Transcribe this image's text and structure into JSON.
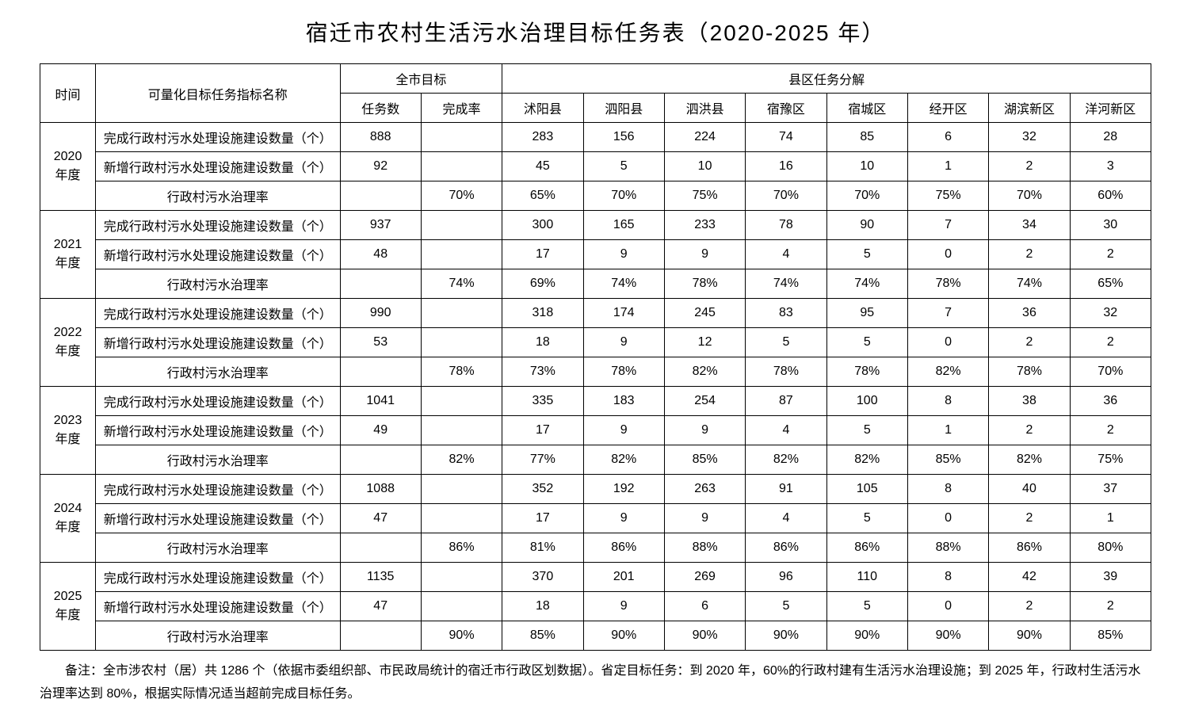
{
  "title": "宿迁市农村生活污水治理目标任务表（2020-2025 年）",
  "headers": {
    "time": "时间",
    "indicator": "可量化目标任务指标名称",
    "cityTarget": "全市目标",
    "taskCount": "任务数",
    "completionRate": "完成率",
    "countyBreakdown": "县区任务分解",
    "counties": [
      "沭阳县",
      "泗阳县",
      "泗洪县",
      "宿豫区",
      "宿城区",
      "经开区",
      "湖滨新区",
      "洋河新区"
    ]
  },
  "indicators": {
    "completed": "完成行政村污水处理设施建设数量（个）",
    "new": "新增行政村污水处理设施建设数量（个）",
    "rate": "行政村污水治理率"
  },
  "years": [
    {
      "label": "2020年度",
      "rows": [
        {
          "indicator": "completed",
          "taskCount": "888",
          "completionRate": "",
          "values": [
            "283",
            "156",
            "224",
            "74",
            "85",
            "6",
            "32",
            "28"
          ]
        },
        {
          "indicator": "new",
          "taskCount": "92",
          "completionRate": "",
          "values": [
            "45",
            "5",
            "10",
            "16",
            "10",
            "1",
            "2",
            "3"
          ]
        },
        {
          "indicator": "rate",
          "taskCount": "",
          "completionRate": "70%",
          "values": [
            "65%",
            "70%",
            "75%",
            "70%",
            "70%",
            "75%",
            "70%",
            "60%"
          ]
        }
      ]
    },
    {
      "label": "2021年度",
      "rows": [
        {
          "indicator": "completed",
          "taskCount": "937",
          "completionRate": "",
          "values": [
            "300",
            "165",
            "233",
            "78",
            "90",
            "7",
            "34",
            "30"
          ]
        },
        {
          "indicator": "new",
          "taskCount": "48",
          "completionRate": "",
          "values": [
            "17",
            "9",
            "9",
            "4",
            "5",
            "0",
            "2",
            "2"
          ]
        },
        {
          "indicator": "rate",
          "taskCount": "",
          "completionRate": "74%",
          "values": [
            "69%",
            "74%",
            "78%",
            "74%",
            "74%",
            "78%",
            "74%",
            "65%"
          ]
        }
      ]
    },
    {
      "label": "2022年度",
      "rows": [
        {
          "indicator": "completed",
          "taskCount": "990",
          "completionRate": "",
          "values": [
            "318",
            "174",
            "245",
            "83",
            "95",
            "7",
            "36",
            "32"
          ]
        },
        {
          "indicator": "new",
          "taskCount": "53",
          "completionRate": "",
          "values": [
            "18",
            "9",
            "12",
            "5",
            "5",
            "0",
            "2",
            "2"
          ]
        },
        {
          "indicator": "rate",
          "taskCount": "",
          "completionRate": "78%",
          "values": [
            "73%",
            "78%",
            "82%",
            "78%",
            "78%",
            "82%",
            "78%",
            "70%"
          ]
        }
      ]
    },
    {
      "label": "2023年度",
      "rows": [
        {
          "indicator": "completed",
          "taskCount": "1041",
          "completionRate": "",
          "values": [
            "335",
            "183",
            "254",
            "87",
            "100",
            "8",
            "38",
            "36"
          ]
        },
        {
          "indicator": "new",
          "taskCount": "49",
          "completionRate": "",
          "values": [
            "17",
            "9",
            "9",
            "4",
            "5",
            "1",
            "2",
            "2"
          ]
        },
        {
          "indicator": "rate",
          "taskCount": "",
          "completionRate": "82%",
          "values": [
            "77%",
            "82%",
            "85%",
            "82%",
            "82%",
            "85%",
            "82%",
            "75%"
          ]
        }
      ]
    },
    {
      "label": "2024年度",
      "rows": [
        {
          "indicator": "completed",
          "taskCount": "1088",
          "completionRate": "",
          "values": [
            "352",
            "192",
            "263",
            "91",
            "105",
            "8",
            "40",
            "37"
          ]
        },
        {
          "indicator": "new",
          "taskCount": "47",
          "completionRate": "",
          "values": [
            "17",
            "9",
            "9",
            "4",
            "5",
            "0",
            "2",
            "1"
          ]
        },
        {
          "indicator": "rate",
          "taskCount": "",
          "completionRate": "86%",
          "values": [
            "81%",
            "86%",
            "88%",
            "86%",
            "86%",
            "88%",
            "86%",
            "80%"
          ]
        }
      ]
    },
    {
      "label": "2025年度",
      "rows": [
        {
          "indicator": "completed",
          "taskCount": "1135",
          "completionRate": "",
          "values": [
            "370",
            "201",
            "269",
            "96",
            "110",
            "8",
            "42",
            "39"
          ]
        },
        {
          "indicator": "new",
          "taskCount": "47",
          "completionRate": "",
          "values": [
            "18",
            "9",
            "6",
            "5",
            "5",
            "0",
            "2",
            "2"
          ]
        },
        {
          "indicator": "rate",
          "taskCount": "",
          "completionRate": "90%",
          "values": [
            "85%",
            "90%",
            "90%",
            "90%",
            "90%",
            "90%",
            "90%",
            "85%"
          ]
        }
      ]
    }
  ],
  "footnote": "备注：全市涉农村（居）共 1286 个（依据市委组织部、市民政局统计的宿迁市行政区划数据）。省定目标任务：到 2020 年，60%的行政村建有生活污水治理设施；到 2025 年，行政村生活污水治理率达到 80%，根据实际情况适当超前完成目标任务。"
}
